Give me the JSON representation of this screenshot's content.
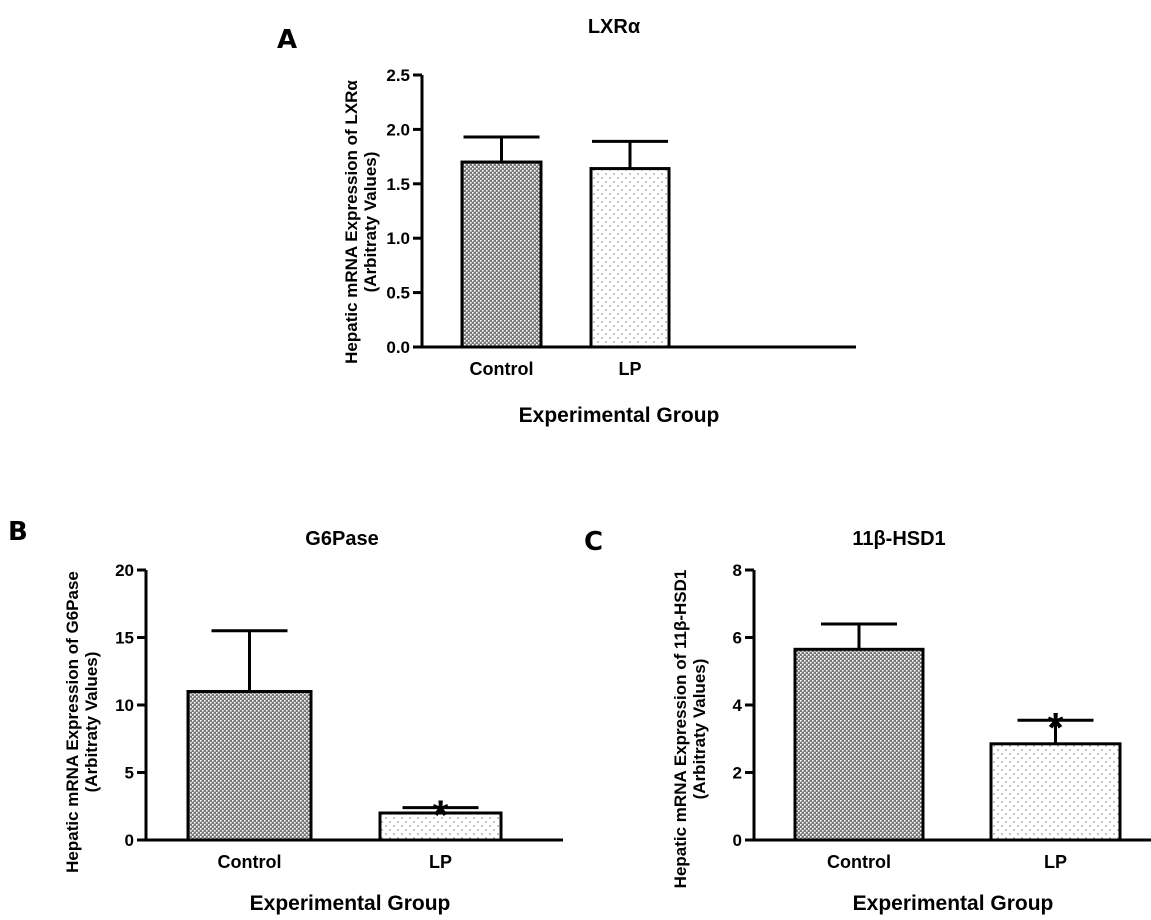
{
  "figure": {
    "panels": [
      "A",
      "B",
      "C"
    ]
  },
  "chart_data": [
    {
      "panel": "A",
      "type": "bar",
      "title": "LXRα",
      "xlabel": "Experimental Group",
      "ylabel": [
        "Hepatic mRNA Expression of LXRα",
        "(Arbitraty Values)"
      ],
      "categories": [
        "Control",
        "LP"
      ],
      "values": [
        1.7,
        1.64
      ],
      "error_upper": [
        1.93,
        1.89
      ],
      "significance": [
        "",
        ""
      ],
      "ylim": [
        0,
        2.5
      ],
      "yticks": [
        "0.0",
        "0.5",
        "1.0",
        "1.5",
        "2.0",
        "2.5"
      ],
      "bar_fill": [
        "dark-dotted",
        "light-dotted"
      ],
      "grid": false,
      "legend": "none"
    },
    {
      "panel": "B",
      "type": "bar",
      "title": "G6Pase",
      "xlabel": "Experimental Group",
      "ylabel": [
        "Hepatic mRNA Expression of G6Pase",
        "(Arbitraty Values)"
      ],
      "categories": [
        "Control",
        "LP"
      ],
      "values": [
        11.0,
        2.0
      ],
      "error_upper": [
        15.5,
        2.4
      ],
      "significance": [
        "",
        "*"
      ],
      "ylim": [
        0,
        20
      ],
      "yticks": [
        "0",
        "5",
        "10",
        "15",
        "20"
      ],
      "bar_fill": [
        "dark-dotted",
        "light-dotted"
      ],
      "grid": false,
      "legend": "none"
    },
    {
      "panel": "C",
      "type": "bar",
      "title": "11β-HSD1",
      "xlabel": "Experimental Group",
      "ylabel": [
        "Hepatic mRNA Expression of 11β-HSD1",
        "(Arbitraty Values)"
      ],
      "categories": [
        "Control",
        "LP"
      ],
      "values": [
        5.65,
        2.85
      ],
      "error_upper": [
        6.4,
        3.55
      ],
      "significance": [
        "",
        "*"
      ],
      "ylim": [
        0,
        8
      ],
      "yticks": [
        "0",
        "2",
        "4",
        "6",
        "8"
      ],
      "bar_fill": [
        "dark-dotted",
        "light-dotted"
      ],
      "grid": false,
      "legend": "none"
    }
  ]
}
